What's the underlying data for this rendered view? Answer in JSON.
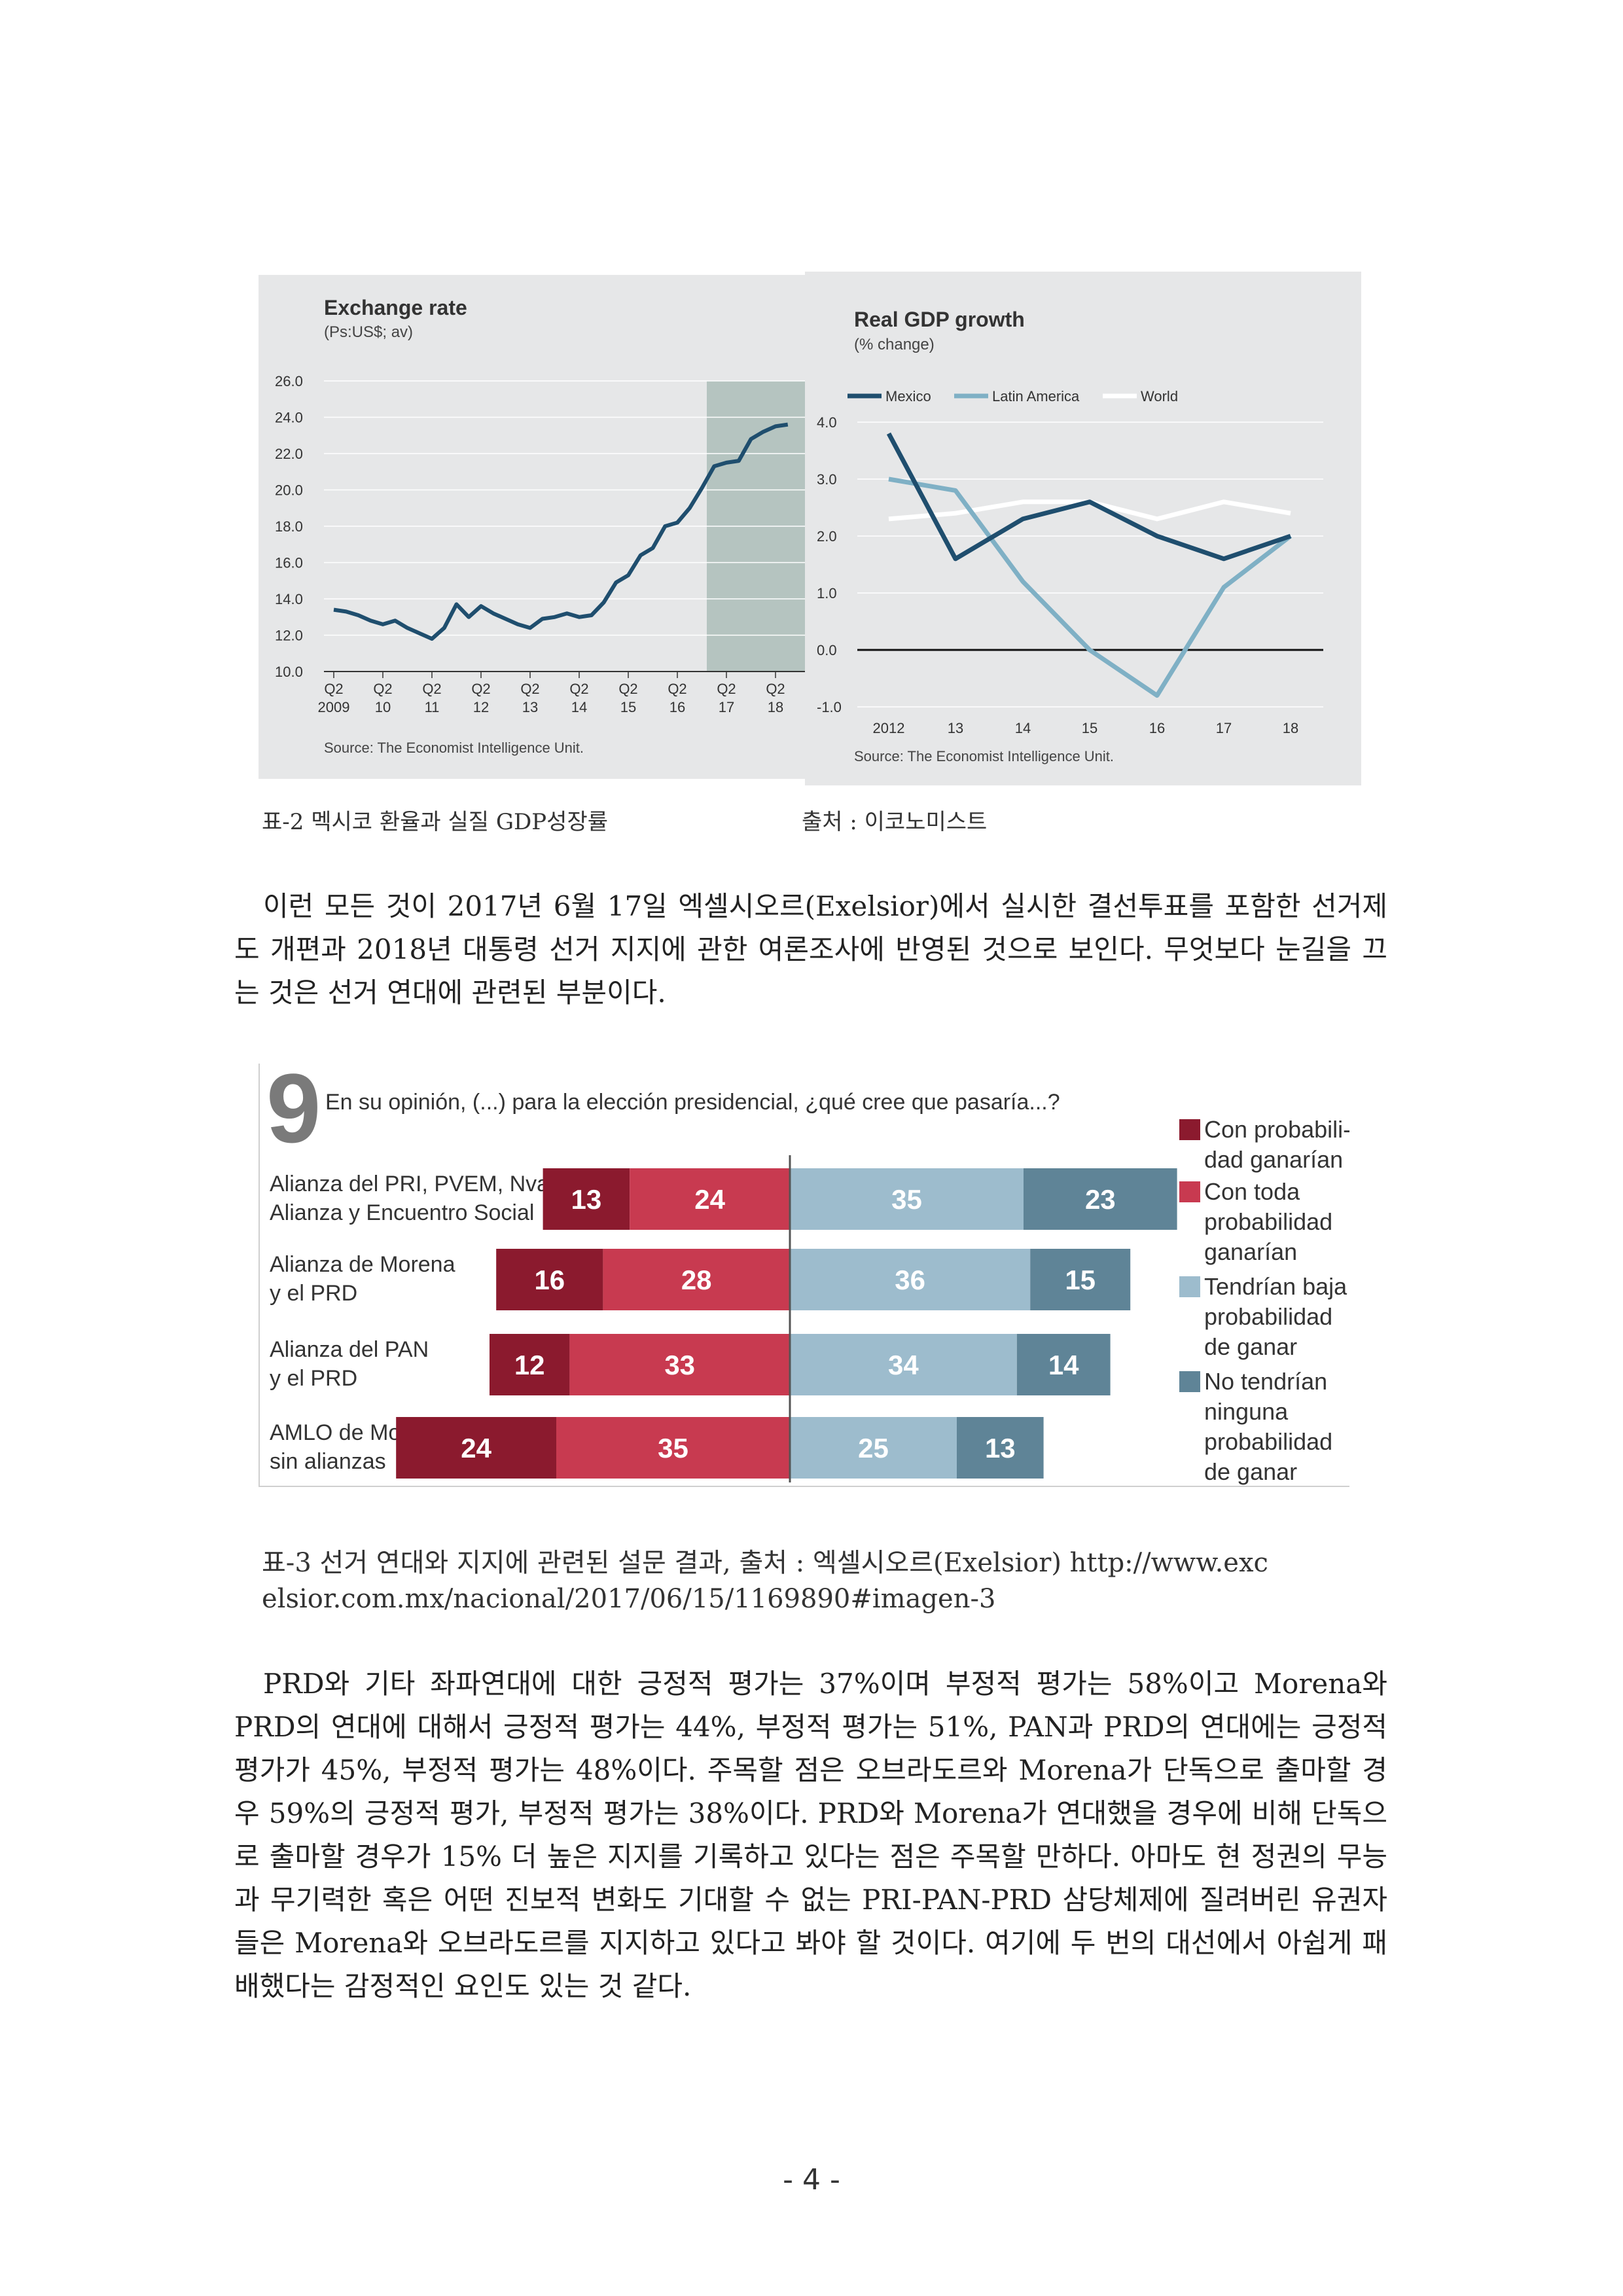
{
  "exchange_chart": {
    "title": "Exchange rate",
    "subtitle": "(Ps:US$; av)",
    "source": "Source: The Economist Intelligence Unit.",
    "colors": {
      "line": "#1f4e6e",
      "forecast_shade": "#b5c4c0",
      "background": "#e6e7e8"
    },
    "chart_data": {
      "type": "line",
      "title": "Exchange rate",
      "ylabel": "(Ps:US$; av)",
      "ylim": [
        10.0,
        26.0
      ],
      "yticks": [
        "10.0",
        "12.0",
        "14.0",
        "16.0",
        "18.0",
        "20.0",
        "22.0",
        "24.0",
        "26.0"
      ],
      "x_ticks": [
        {
          "q": "Q2",
          "y": "2009"
        },
        {
          "q": "Q2",
          "y": "10"
        },
        {
          "q": "Q2",
          "y": "11"
        },
        {
          "q": "Q2",
          "y": "12"
        },
        {
          "q": "Q2",
          "y": "13"
        },
        {
          "q": "Q2",
          "y": "14"
        },
        {
          "q": "Q2",
          "y": "15"
        },
        {
          "q": "Q2",
          "y": "16"
        },
        {
          "q": "Q2",
          "y": "17"
        },
        {
          "q": "Q2",
          "y": "18"
        }
      ],
      "forecast_from": "2017",
      "series": [
        {
          "x": [
            2009.25,
            2009.5,
            2009.75,
            2010.0,
            2010.25,
            2010.5,
            2010.75,
            2011.0,
            2011.25,
            2011.5,
            2011.75,
            2012.0,
            2012.25,
            2012.5,
            2012.75,
            2013.0,
            2013.25,
            2013.5,
            2013.75,
            2014.0,
            2014.25,
            2014.5,
            2014.75,
            2015.0,
            2015.25,
            2015.5,
            2015.75,
            2016.0,
            2016.25,
            2016.5,
            2016.75,
            2017.0,
            2017.25,
            2017.5,
            2017.75,
            2018.0,
            2018.25,
            2018.5
          ],
          "values": [
            13.4,
            13.3,
            13.1,
            12.8,
            12.6,
            12.8,
            12.4,
            12.1,
            11.8,
            12.4,
            13.7,
            13.0,
            13.6,
            13.2,
            12.9,
            12.6,
            12.4,
            12.9,
            13.0,
            13.2,
            13.0,
            13.1,
            13.8,
            14.9,
            15.3,
            16.4,
            16.8,
            18.0,
            18.2,
            19.0,
            20.1,
            21.3,
            21.5,
            21.6,
            22.8,
            23.2,
            23.5,
            23.6
          ]
        }
      ]
    }
  },
  "gdp_chart": {
    "title": "Real GDP growth",
    "subtitle": "(% change)",
    "source": "Source: The Economist Intelligence Unit.",
    "colors": {
      "mexico": "#1f4e6e",
      "latin_america": "#7fb0c5",
      "world": "#ffffff",
      "background": "#e6e7e8"
    },
    "chart_data": {
      "type": "line",
      "title": "Real GDP growth",
      "ylabel": "(% change)",
      "ylim": [
        -1.0,
        4.0
      ],
      "yticks": [
        "-1.0",
        "0.0",
        "1.0",
        "2.0",
        "3.0",
        "4.0"
      ],
      "categories": [
        "2012",
        "13",
        "14",
        "15",
        "16",
        "17",
        "18"
      ],
      "legend_position": "top",
      "series": [
        {
          "name": "Mexico",
          "values": [
            3.8,
            1.6,
            2.3,
            2.6,
            2.0,
            1.6,
            2.0
          ]
        },
        {
          "name": "Latin America",
          "values": [
            3.0,
            2.8,
            1.2,
            0.0,
            -0.8,
            1.1,
            2.0
          ]
        },
        {
          "name": "World",
          "values": [
            2.3,
            2.4,
            2.6,
            2.6,
            2.3,
            2.6,
            2.4
          ]
        }
      ]
    }
  },
  "caption2": {
    "left": "표-2 멕시코 환율과 실질 GDP성장률",
    "right": "출처 : 이코노미스트"
  },
  "para1": "이런 모든 것이 2017년 6월 17일 엑셀시오르(Exelsior)에서 실시한 결선투표를 포함한 선거제도 개편과 2018년 대통령 선거 지지에 관한 여론조사에 반영된 것으로 보인다. 무엇보다 눈길을 끄는 것은 선거 연대에 관련된 부분이다.",
  "poll_chart": {
    "number": "9",
    "question": "En su opinión, (...) para la elección presidencial, ¿qué cree que pasaría...?",
    "colors": {
      "c1": "#8b1a2e",
      "c2": "#c83a50",
      "c3": "#9dbccd",
      "c4": "#5f8497",
      "center": "#555555"
    },
    "chart_data": {
      "type": "bar",
      "title": "En su opinión, (...) para la elección presidencial, ¿qué cree que pasaría...?",
      "categories": [
        [
          "Alianza del PRI, PVEM, Nva.",
          "Alianza y Encuentro Social"
        ],
        [
          "Alianza de Morena",
          "y el PRD"
        ],
        [
          "Alianza del PAN",
          "y el PRD"
        ],
        [
          "AMLO de Morena",
          "sin alianzas"
        ]
      ],
      "series": [
        {
          "name": [
            "Con probabili-",
            "dad ganarían"
          ],
          "values": [
            13,
            16,
            12,
            24
          ]
        },
        {
          "name": [
            "Con toda",
            "probabilidad",
            "ganarían"
          ],
          "values": [
            24,
            28,
            33,
            35
          ]
        },
        {
          "name": [
            "Tendrían baja",
            "probabilidad",
            "de ganar"
          ],
          "values": [
            35,
            36,
            34,
            25
          ]
        },
        {
          "name": [
            "No tendrían",
            "ninguna",
            "probabilidad",
            "de ganar"
          ],
          "values": [
            23,
            15,
            14,
            13
          ]
        }
      ],
      "legend_position": "right"
    }
  },
  "caption3": {
    "line1": "표-3 선거 연대와 지지에 관련된 설문 결과, 출처 : 엑셀시오르(Exelsior) http://www.exc",
    "line2": "elsior.com.mx/nacional/2017/06/15/1169890#imagen-3"
  },
  "para2": "PRD와 기타 좌파연대에 대한 긍정적 평가는 37%이며 부정적 평가는 58%이고 Morena와 PRD의 연대에 대해서 긍정적 평가는 44%, 부정적 평가는 51%, PAN과 PRD의 연대에는 긍정적 평가가 45%, 부정적 평가는 48%이다. 주목할 점은 오브라도르와 Morena가 단독으로 출마할 경우 59%의 긍정적 평가, 부정적 평가는 38%이다. PRD와 Morena가 연대했을 경우에 비해 단독으로 출마할 경우가 15% 더 높은 지지를 기록하고 있다는 점은 주목할 만하다. 아마도 현 정권의 무능과 무기력한 혹은 어떤 진보적 변화도 기대할 수 없는 PRI-PAN-PRD 삼당체제에 질려버린 유권자들은 Morena와 오브라도르를 지지하고 있다고 봐야 할 것이다. 여기에 두 번의 대선에서 아쉽게 패배했다는 감정적인 요인도 있는 것 같다.",
  "page_number": "- 4 -"
}
